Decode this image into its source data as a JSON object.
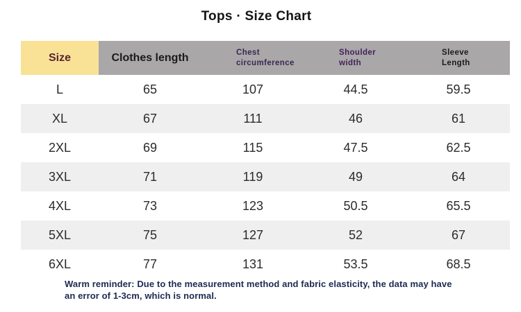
{
  "title": "Tops · Size Chart",
  "table": {
    "headers": {
      "size": "Size",
      "clothes_length": "Clothes length",
      "chest_line1": "Chest",
      "chest_line2": "circumference",
      "shoulder_line1": "Shoulder",
      "shoulder_line2": "width",
      "sleeve_line1": "Sleeve",
      "sleeve_line2": "Length"
    },
    "rows": [
      {
        "size": "L",
        "clothes_length": "65",
        "chest": "107",
        "shoulder": "44.5",
        "sleeve": "59.5"
      },
      {
        "size": "XL",
        "clothes_length": "67",
        "chest": "111",
        "shoulder": "46",
        "sleeve": "61"
      },
      {
        "size": "2XL",
        "clothes_length": "69",
        "chest": "115",
        "shoulder": "47.5",
        "sleeve": "62.5"
      },
      {
        "size": "3XL",
        "clothes_length": "71",
        "chest": "119",
        "shoulder": "49",
        "sleeve": "64"
      },
      {
        "size": "4XL",
        "clothes_length": "73",
        "chest": "123",
        "shoulder": "50.5",
        "sleeve": "65.5"
      },
      {
        "size": "5XL",
        "clothes_length": "75",
        "chest": "127",
        "shoulder": "52",
        "sleeve": "67"
      },
      {
        "size": "6XL",
        "clothes_length": "77",
        "chest": "131",
        "shoulder": "53.5",
        "sleeve": "68.5"
      }
    ]
  },
  "footer": {
    "line1": "Warm reminder: Due to the measurement method and fabric elasticity, the data may have",
    "line2": "an error of 1-3cm, which is normal."
  },
  "colors": {
    "size_header_bg": "#F9E296",
    "header_bg": "#A9A7A8",
    "stripe_row_bg": "#EFEFEF",
    "size_header_text": "#5C2134",
    "purple_header_text": "#382853",
    "footer_text": "#1D2A52"
  },
  "chart_data": {
    "type": "table",
    "title": "Tops · Size Chart",
    "columns": [
      "Size",
      "Clothes length",
      "Chest circumference",
      "Shoulder width",
      "Sleeve Length"
    ],
    "rows": [
      [
        "L",
        65,
        107,
        44.5,
        59.5
      ],
      [
        "XL",
        67,
        111,
        46,
        61
      ],
      [
        "2XL",
        69,
        115,
        47.5,
        62.5
      ],
      [
        "3XL",
        71,
        119,
        49,
        64
      ],
      [
        "4XL",
        73,
        123,
        50.5,
        65.5
      ],
      [
        "5XL",
        75,
        127,
        52,
        67
      ],
      [
        "6XL",
        77,
        131,
        53.5,
        68.5
      ]
    ],
    "note": "Warm reminder: Due to the measurement method and fabric elasticity, the data may have an error of 1-3cm, which is normal."
  }
}
